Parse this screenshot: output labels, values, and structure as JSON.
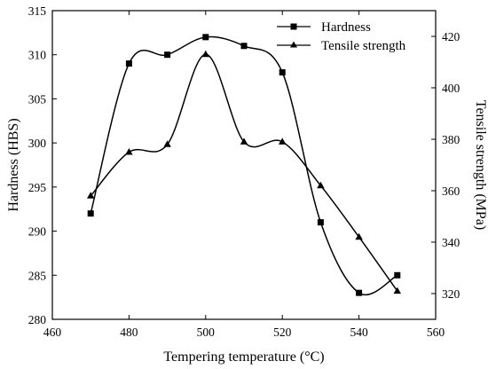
{
  "chart_data": {
    "type": "line",
    "title": "",
    "xlabel": "Tempering temperature (°C)",
    "ylabel_left": "Hardness (HBS)",
    "ylabel_right": "Tensile strength (MPa)",
    "xlim": [
      460,
      560
    ],
    "ylim_left": [
      280,
      315
    ],
    "ylim_right": [
      310,
      430
    ],
    "x_ticks": [
      460,
      480,
      500,
      520,
      540,
      560
    ],
    "y_left_ticks": [
      280,
      285,
      290,
      295,
      300,
      305,
      310,
      315
    ],
    "y_right_ticks": [
      320,
      340,
      360,
      380,
      400,
      420
    ],
    "x_tick_labels": [
      "460",
      "480",
      "500",
      "520",
      "540",
      "560"
    ],
    "y_left_tick_labels": [
      "280",
      "285",
      "290",
      "295",
      "300",
      "305",
      "310",
      "315"
    ],
    "y_right_tick_labels": [
      "320",
      "340",
      "360",
      "380",
      "400",
      "420"
    ],
    "grid": false,
    "legend_position": "top-right",
    "x": [
      470,
      480,
      490,
      500,
      510,
      520,
      530,
      540,
      550
    ],
    "series": [
      {
        "name": "Hardness",
        "axis": "left",
        "marker": "square",
        "values": [
          292,
          309,
          310,
          312,
          311,
          308,
          291,
          283,
          285
        ]
      },
      {
        "name": "Tensile strength",
        "axis": "right",
        "marker": "triangle",
        "values": [
          358,
          375,
          378,
          413,
          379,
          379,
          362,
          342,
          321
        ]
      }
    ]
  },
  "legend": {
    "items": [
      "Hardness",
      "Tensile strength"
    ]
  }
}
